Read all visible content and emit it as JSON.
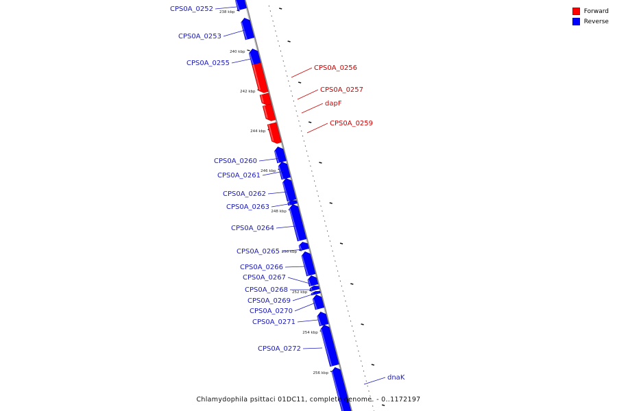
{
  "colors": {
    "forward": "#ff0000",
    "reverse": "#0000ff",
    "backbone": "#8c8c8c",
    "label_forward": "#cc0000",
    "label_reverse": "#1a1ab8"
  },
  "legend": [
    {
      "label": "Forward",
      "color": "#ff0000"
    },
    {
      "label": "Reverse",
      "color": "#0000ff"
    }
  ],
  "title": "Chlamydophila psittaci 01DC11, complete genome. - 0..1172197",
  "axis": {
    "unit": "kbp",
    "labels": [
      "238 kbp",
      "240 kbp",
      "242 kbp",
      "244 kbp",
      "246 kbp",
      "248 kbp",
      "250 kbp",
      "252 kbp",
      "254 kbp",
      "256 kbp"
    ]
  },
  "genes": [
    {
      "name": "CPS0A_0252",
      "strand": "reverse"
    },
    {
      "name": "CPS0A_0253",
      "strand": "reverse"
    },
    {
      "name": "CPS0A_0255",
      "strand": "reverse"
    },
    {
      "name": "CPS0A_0256",
      "strand": "forward"
    },
    {
      "name": "CPS0A_0257",
      "strand": "forward"
    },
    {
      "name": "dapF",
      "strand": "forward"
    },
    {
      "name": "CPS0A_0259",
      "strand": "forward"
    },
    {
      "name": "CPS0A_0260",
      "strand": "reverse"
    },
    {
      "name": "CPS0A_0261",
      "strand": "reverse"
    },
    {
      "name": "CPS0A_0262",
      "strand": "reverse"
    },
    {
      "name": "CPS0A_0263",
      "strand": "reverse"
    },
    {
      "name": "CPS0A_0264",
      "strand": "reverse"
    },
    {
      "name": "CPS0A_0265",
      "strand": "reverse"
    },
    {
      "name": "CPS0A_0266",
      "strand": "reverse"
    },
    {
      "name": "CPS0A_0267",
      "strand": "reverse"
    },
    {
      "name": "CPS0A_0268",
      "strand": "reverse"
    },
    {
      "name": "CPS0A_0269",
      "strand": "reverse"
    },
    {
      "name": "CPS0A_0270",
      "strand": "reverse"
    },
    {
      "name": "CPS0A_0271",
      "strand": "reverse"
    },
    {
      "name": "CPS0A_0272",
      "strand": "reverse"
    },
    {
      "name": "dnaK",
      "strand": "reverse"
    }
  ]
}
